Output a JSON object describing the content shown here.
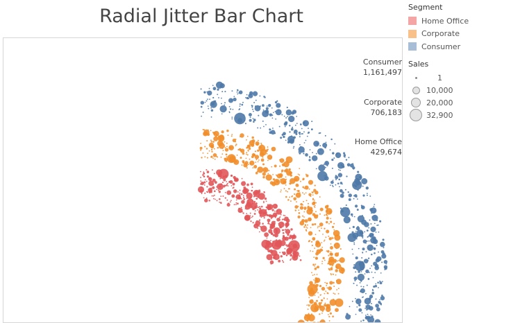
{
  "chart_data": {
    "type": "radial-jitter-bar",
    "title": "Radial Jitter Bar Chart",
    "segments": [
      {
        "name": "Home Office",
        "value": 429674,
        "value_label": "429,674",
        "color": "#e15759"
      },
      {
        "name": "Corporate",
        "value": 706183,
        "value_label": "706,183",
        "color": "#f28e2b"
      },
      {
        "name": "Consumer",
        "value": 1161497,
        "value_label": "1,161,497",
        "color": "#4e79a7"
      }
    ],
    "legend": {
      "segment_title": "Segment",
      "segment_items": [
        {
          "label": "Home Office",
          "color": "#f4a6a6"
        },
        {
          "label": "Corporate",
          "color": "#f9c08a"
        },
        {
          "label": "Consumer",
          "color": "#a8bdd6"
        }
      ],
      "size_title": "Sales",
      "size_items": [
        {
          "label": "1",
          "value": 1
        },
        {
          "label": "10,000",
          "value": 10000
        },
        {
          "label": "20,000",
          "value": 20000
        },
        {
          "label": "32,900",
          "value": 32900
        }
      ]
    }
  }
}
